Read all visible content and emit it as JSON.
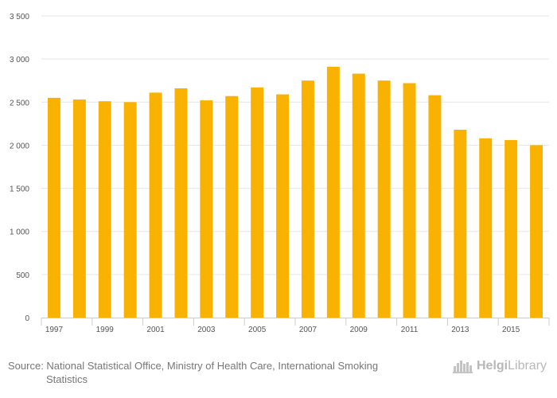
{
  "chart_data": {
    "type": "bar",
    "categories": [
      "1997",
      "1998",
      "1999",
      "2000",
      "2001",
      "2002",
      "2003",
      "2004",
      "2005",
      "2006",
      "2007",
      "2008",
      "2009",
      "2010",
      "2011",
      "2012",
      "2013",
      "2014",
      "2015",
      "2016"
    ],
    "values": [
      2550,
      2530,
      2510,
      2500,
      2610,
      2660,
      2520,
      2570,
      2670,
      2590,
      2750,
      2910,
      2830,
      2750,
      2720,
      2580,
      2180,
      2080,
      2060,
      2000
    ],
    "x_tick_labels": [
      "1997",
      "1999",
      "2001",
      "2003",
      "2005",
      "2007",
      "2009",
      "2011",
      "2013",
      "2015"
    ],
    "y_ticks": [
      0,
      500,
      1000,
      1500,
      2000,
      2500,
      3000,
      3500
    ],
    "y_tick_labels": [
      "0",
      "500",
      "1 000",
      "1 500",
      "2 000",
      "2 500",
      "3 000",
      "3 500"
    ],
    "ylim": [
      0,
      3500
    ],
    "title": "",
    "xlabel": "",
    "ylabel": "",
    "grid": true,
    "bar_color": "#f9b200",
    "grid_color": "#e6e6e6",
    "axis_color": "#cccccc"
  },
  "footer": {
    "source_line1": "Source: National Statistical Office, Ministry of Health Care, International Smoking",
    "source_line2": "Statistics",
    "brand_part1": "Helgi",
    "brand_part2": "Library"
  }
}
